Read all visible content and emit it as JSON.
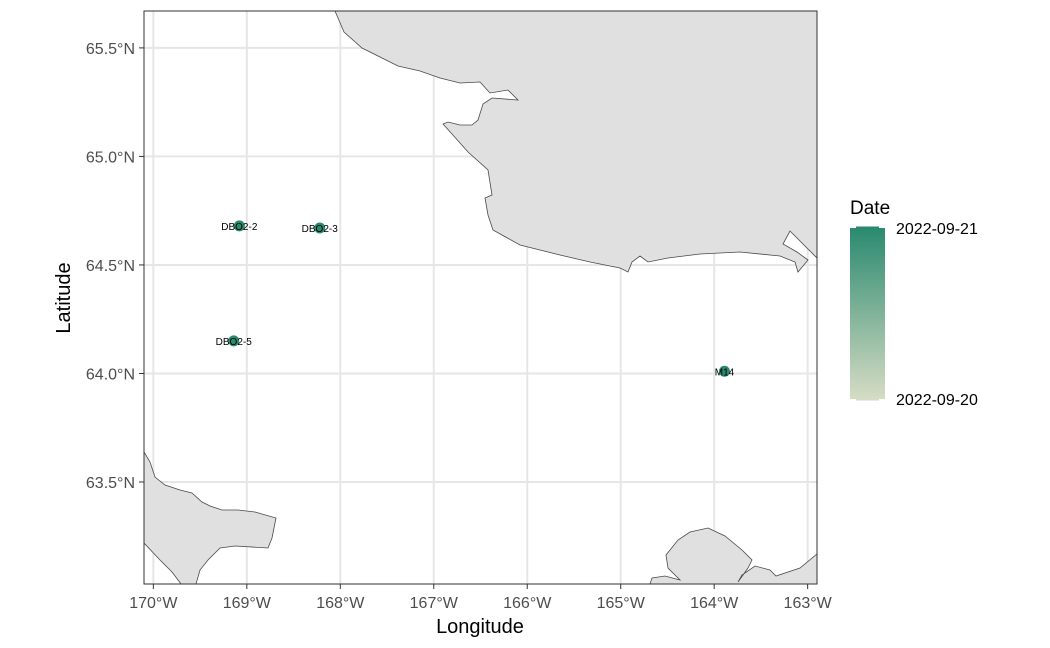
{
  "chart_data": {
    "type": "scatter",
    "subtype": "map",
    "title": "",
    "xlabel": "Longitude",
    "ylabel": "Latitude",
    "xlim": [
      -170.1,
      -162.9
    ],
    "ylim": [
      63.03,
      65.67
    ],
    "x_ticks": [
      {
        "value": -170,
        "label": "170°W"
      },
      {
        "value": -169,
        "label": "169°W"
      },
      {
        "value": -168,
        "label": "168°W"
      },
      {
        "value": -167,
        "label": "167°W"
      },
      {
        "value": -166,
        "label": "166°W"
      },
      {
        "value": -165,
        "label": "165°W"
      },
      {
        "value": -164,
        "label": "164°W"
      },
      {
        "value": -163,
        "label": "163°W"
      }
    ],
    "y_ticks": [
      {
        "value": 63.5,
        "label": "63.5°N"
      },
      {
        "value": 64.0,
        "label": "64.0°N"
      },
      {
        "value": 64.5,
        "label": "64.5°N"
      },
      {
        "value": 65.0,
        "label": "65.0°N"
      },
      {
        "value": 65.5,
        "label": "65.5°N"
      }
    ],
    "grid": true,
    "points": [
      {
        "label": "DBO2-2",
        "lon": -169.08,
        "lat": 64.68,
        "date": "2022-09-21"
      },
      {
        "label": "DBO2-3",
        "lon": -168.22,
        "lat": 64.67,
        "date": "2022-09-21"
      },
      {
        "label": "DBO2-5",
        "lon": -169.14,
        "lat": 64.15,
        "date": "2022-09-21"
      },
      {
        "label": "M14",
        "lon": -163.89,
        "lat": 64.01,
        "date": "2022-09-21"
      }
    ],
    "legend": {
      "title": "Date",
      "position": "right",
      "max_label": "2022-09-21",
      "min_label": "2022-09-20",
      "color_high": "#2a8a6f",
      "color_low": "#d5dcc4"
    },
    "colors": {
      "land": "#e0e0e0",
      "land_stroke": "#4a4a4a",
      "grid": "#e6e6e6",
      "point": "#2a8a6f",
      "panel_border": "#333333"
    }
  }
}
